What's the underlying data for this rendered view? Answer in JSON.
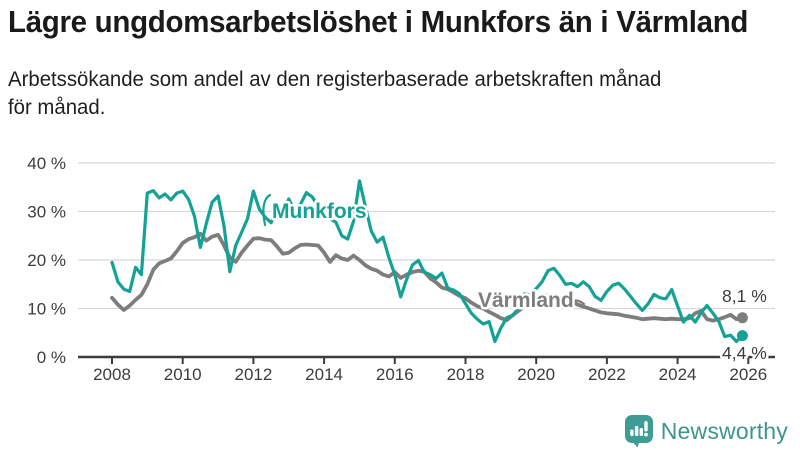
{
  "header": {
    "title": "Lägre ungdomsarbetslöshet i Munkfors än i Värmland",
    "subtitle": "Arbetssökande som andel av den registerbaserade arbetskraften månad för månad.",
    "subtitle_line1": "Arbetssökande som andel av den registerbaserade arbetskraften månad",
    "subtitle_line2": "för månad."
  },
  "colors": {
    "munkfors": "#13a295",
    "varmland": "#7d7d7d",
    "axis": "#3c3c3c",
    "grid": "#d8d8d8",
    "brand": "#3f948e",
    "title_text": "#1a1a1a"
  },
  "chart_data": {
    "type": "line",
    "title": "Lägre ungdomsarbetslöshet i Munkfors än i Värmland",
    "xlabel": "",
    "ylabel": "",
    "unit": "%",
    "grid": true,
    "legend": "inline-labels",
    "x_axis": {
      "ticks": [
        2008,
        2010,
        2012,
        2014,
        2016,
        2018,
        2020,
        2022,
        2024,
        2026
      ],
      "range": [
        2007.0,
        2026.6
      ]
    },
    "y_axis": {
      "ticks": [
        0,
        10,
        20,
        30,
        40
      ],
      "tick_labels": [
        "0 %",
        "10 %",
        "20 %",
        "30 %",
        "40 %"
      ],
      "range": [
        0,
        40
      ]
    },
    "x": [
      2008.0,
      2008.167,
      2008.333,
      2008.5,
      2008.667,
      2008.833,
      2009.0,
      2009.167,
      2009.333,
      2009.5,
      2009.667,
      2009.833,
      2010.0,
      2010.167,
      2010.333,
      2010.5,
      2010.667,
      2010.833,
      2011.0,
      2011.167,
      2011.333,
      2011.5,
      2011.667,
      2011.833,
      2012.0,
      2012.167,
      2012.333,
      2012.5,
      2012.667,
      2012.833,
      2013.0,
      2013.167,
      2013.333,
      2013.5,
      2013.667,
      2013.833,
      2014.0,
      2014.167,
      2014.333,
      2014.5,
      2014.667,
      2014.833,
      2015.0,
      2015.167,
      2015.333,
      2015.5,
      2015.667,
      2015.833,
      2016.0,
      2016.167,
      2016.333,
      2016.5,
      2016.667,
      2016.833,
      2017.0,
      2017.167,
      2017.333,
      2017.5,
      2017.667,
      2017.833,
      2018.0,
      2018.167,
      2018.333,
      2018.5,
      2018.667,
      2018.833,
      2019.0,
      2019.167,
      2019.333,
      2019.5,
      2019.667,
      2019.833,
      2020.0,
      2020.167,
      2020.333,
      2020.5,
      2020.667,
      2020.833,
      2021.0,
      2021.167,
      2021.333,
      2021.5,
      2021.667,
      2021.833,
      2022.0,
      2022.167,
      2022.333,
      2022.5,
      2022.667,
      2022.833,
      2023.0,
      2023.167,
      2023.333,
      2023.5,
      2023.667,
      2023.833,
      2024.0,
      2024.167,
      2024.333,
      2024.5,
      2024.667,
      2024.833,
      2025.0,
      2025.167,
      2025.333,
      2025.5,
      2025.667,
      2025.833
    ],
    "series": [
      {
        "name": "Värmland",
        "color": "#7d7d7d",
        "end_value": 8.1,
        "end_label": "8,1 %",
        "values": [
          12.2,
          10.8,
          9.7,
          10.6,
          11.8,
          12.8,
          15.0,
          18.0,
          19.3,
          19.8,
          20.3,
          21.8,
          23.5,
          24.3,
          24.7,
          25.4,
          24.0,
          24.8,
          25.2,
          23.0,
          20.5,
          19.6,
          21.5,
          23.0,
          24.4,
          24.5,
          24.2,
          24.1,
          22.8,
          21.3,
          21.5,
          22.4,
          23.1,
          23.2,
          23.1,
          23.0,
          21.5,
          19.6,
          21.0,
          20.3,
          20.0,
          20.9,
          20.0,
          18.9,
          18.2,
          17.8,
          17.0,
          16.6,
          17.5,
          16.3,
          17.0,
          17.5,
          17.8,
          17.6,
          16.2,
          15.4,
          14.3,
          14.0,
          13.3,
          12.6,
          12.1,
          11.2,
          10.5,
          10.0,
          9.3,
          8.7,
          8.0,
          7.6,
          8.6,
          9.5,
          10.5,
          11.2,
          11.5,
          12.2,
          12.7,
          12.3,
          12.0,
          11.9,
          11.6,
          10.8,
          10.4,
          10.0,
          9.6,
          9.2,
          9.0,
          8.9,
          8.8,
          8.5,
          8.3,
          8.1,
          7.8,
          7.9,
          8.0,
          7.9,
          7.8,
          7.9,
          7.8,
          7.8,
          8.0,
          9.0,
          9.5,
          7.8,
          7.5,
          7.8,
          8.2,
          8.7,
          7.8,
          8.1
        ]
      },
      {
        "name": "Munkfors",
        "color": "#13a295",
        "end_value": 4.4,
        "end_label": "4,4 %",
        "values": [
          19.5,
          15.5,
          14.0,
          13.5,
          18.5,
          17.0,
          33.8,
          34.3,
          32.8,
          33.6,
          32.4,
          33.8,
          34.2,
          32.5,
          29.0,
          22.6,
          27.5,
          31.9,
          33.2,
          27.0,
          17.6,
          23.0,
          25.7,
          28.5,
          34.2,
          30.5,
          28.8,
          27.7,
          30.5,
          29.0,
          32.6,
          30.0,
          31.5,
          33.9,
          33.0,
          31.0,
          29.5,
          28.5,
          27.8,
          25.0,
          24.3,
          28.0,
          36.3,
          31.0,
          26.0,
          23.7,
          24.7,
          20.5,
          17.0,
          12.4,
          16.0,
          19.0,
          19.9,
          17.5,
          17.0,
          16.2,
          17.3,
          14.2,
          13.8,
          13.0,
          11.0,
          9.0,
          7.8,
          6.8,
          7.3,
          3.2,
          6.0,
          8.1,
          8.6,
          10.0,
          13.0,
          12.8,
          14.1,
          15.5,
          17.8,
          18.3,
          16.8,
          15.0,
          15.2,
          14.5,
          15.5,
          14.5,
          12.5,
          11.7,
          13.5,
          14.8,
          15.2,
          14.0,
          12.5,
          11.0,
          9.6,
          11.0,
          12.9,
          12.2,
          12.0,
          13.9,
          10.5,
          7.2,
          8.6,
          7.2,
          9.2,
          10.6,
          9.0,
          7.3,
          4.2,
          4.5,
          3.2,
          4.4
        ]
      }
    ]
  },
  "footer": {
    "brand": "Newsworthy"
  }
}
